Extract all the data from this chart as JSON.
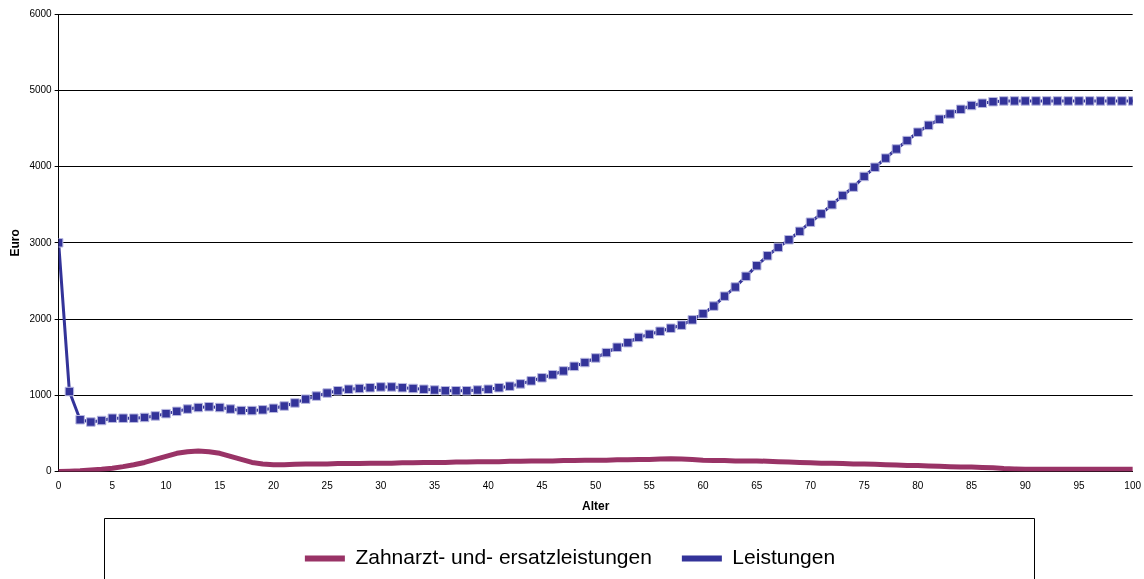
{
  "chart_data": {
    "type": "line",
    "xlabel": "Alter",
    "ylabel": "Euro",
    "x": [
      0,
      1,
      2,
      3,
      4,
      5,
      6,
      7,
      8,
      9,
      10,
      11,
      12,
      13,
      14,
      15,
      16,
      17,
      18,
      19,
      20,
      21,
      22,
      23,
      24,
      25,
      26,
      27,
      28,
      29,
      30,
      31,
      32,
      33,
      34,
      35,
      36,
      37,
      38,
      39,
      40,
      41,
      42,
      43,
      44,
      45,
      46,
      47,
      48,
      49,
      50,
      51,
      52,
      53,
      54,
      55,
      56,
      57,
      58,
      59,
      60,
      61,
      62,
      63,
      64,
      65,
      66,
      67,
      68,
      69,
      70,
      71,
      72,
      73,
      74,
      75,
      76,
      77,
      78,
      79,
      80,
      81,
      82,
      83,
      84,
      85,
      86,
      87,
      88,
      89,
      90,
      91,
      92,
      93,
      94,
      95,
      96,
      97,
      98,
      99,
      100
    ],
    "series": [
      {
        "name": "Zahnarzt- und- ersatzleistungen",
        "color": "#993366",
        "marker": "none",
        "values": [
          0,
          5,
          10,
          20,
          30,
          45,
          65,
          90,
          120,
          160,
          200,
          240,
          260,
          270,
          260,
          240,
          200,
          160,
          120,
          100,
          90,
          90,
          95,
          100,
          100,
          100,
          105,
          105,
          105,
          110,
          110,
          110,
          115,
          115,
          120,
          120,
          120,
          125,
          125,
          130,
          130,
          130,
          135,
          135,
          140,
          140,
          140,
          145,
          145,
          150,
          150,
          150,
          155,
          155,
          160,
          160,
          165,
          170,
          165,
          160,
          150,
          145,
          145,
          140,
          140,
          140,
          135,
          130,
          125,
          120,
          115,
          110,
          110,
          105,
          100,
          100,
          95,
          90,
          85,
          80,
          80,
          75,
          70,
          65,
          60,
          60,
          55,
          50,
          40,
          35,
          30,
          30,
          30,
          30,
          30,
          30,
          30,
          30,
          30,
          30,
          30
        ]
      },
      {
        "name": "Leistungen",
        "color": "#333399",
        "marker": "square",
        "values": [
          3000,
          1050,
          680,
          650,
          670,
          700,
          700,
          700,
          710,
          730,
          760,
          790,
          820,
          840,
          850,
          840,
          820,
          800,
          800,
          810,
          830,
          860,
          900,
          950,
          990,
          1030,
          1060,
          1080,
          1090,
          1100,
          1110,
          1110,
          1100,
          1090,
          1080,
          1070,
          1060,
          1060,
          1060,
          1070,
          1080,
          1100,
          1120,
          1150,
          1190,
          1230,
          1270,
          1320,
          1380,
          1430,
          1490,
          1560,
          1630,
          1690,
          1760,
          1800,
          1840,
          1880,
          1920,
          1990,
          2070,
          2170,
          2300,
          2420,
          2560,
          2700,
          2830,
          2940,
          3040,
          3150,
          3270,
          3380,
          3500,
          3620,
          3730,
          3870,
          3990,
          4110,
          4230,
          4340,
          4450,
          4540,
          4620,
          4690,
          4750,
          4800,
          4830,
          4850,
          4860,
          4860,
          4860,
          4860,
          4860,
          4860,
          4860,
          4860,
          4860,
          4860,
          4860,
          4860,
          4860
        ]
      }
    ],
    "xlim": [
      0,
      100
    ],
    "xticks": [
      0,
      5,
      10,
      15,
      20,
      25,
      30,
      35,
      40,
      45,
      50,
      55,
      60,
      65,
      70,
      75,
      80,
      85,
      90,
      95,
      100
    ],
    "ylim": [
      0,
      6000
    ],
    "yticks": [
      0,
      1000,
      2000,
      3000,
      4000,
      5000,
      6000
    ],
    "grid": "y",
    "legend": "bottom",
    "line_style": "solid"
  }
}
